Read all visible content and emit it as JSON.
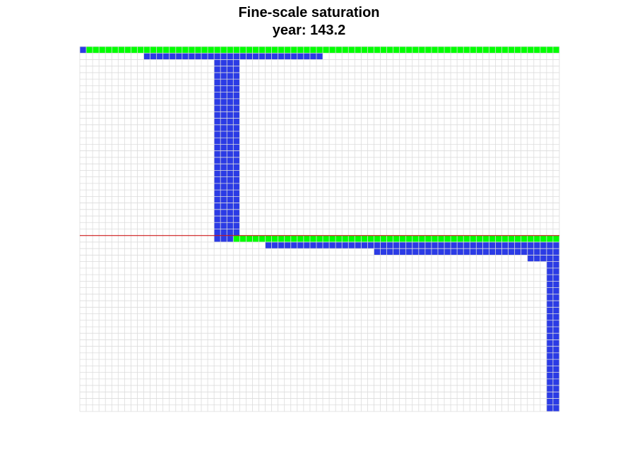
{
  "chart_data": {
    "type": "heatmap",
    "title": "Fine-scale saturation",
    "subtitle": "year: 143.2",
    "xlabel": "",
    "ylabel": "",
    "grid": true,
    "grid_size": {
      "cols": 75,
      "rows": 56
    },
    "cell_states": {
      "0": {
        "meaning": "empty",
        "color": "#ffffff"
      },
      "1": {
        "meaning": "saturated",
        "color": "#2b3be5"
      },
      "2": {
        "meaning": "top layer",
        "color": "#00ff00"
      }
    },
    "regions": [
      {
        "state": 1,
        "cols": [
          0,
          0
        ],
        "rows": [
          0,
          0
        ]
      },
      {
        "state": 2,
        "cols": [
          1,
          74
        ],
        "rows": [
          0,
          0
        ]
      },
      {
        "state": 1,
        "cols": [
          10,
          37
        ],
        "rows": [
          1,
          1
        ]
      },
      {
        "state": 1,
        "cols": [
          21,
          24
        ],
        "rows": [
          1,
          29
        ]
      },
      {
        "state": 2,
        "cols": [
          24,
          74
        ],
        "rows": [
          29,
          29
        ]
      },
      {
        "state": 1,
        "cols": [
          29,
          74
        ],
        "rows": [
          30,
          30
        ]
      },
      {
        "state": 1,
        "cols": [
          46,
          74
        ],
        "rows": [
          31,
          31
        ]
      },
      {
        "state": 1,
        "cols": [
          70,
          74
        ],
        "rows": [
          32,
          32
        ]
      },
      {
        "state": 1,
        "cols": [
          73,
          74
        ],
        "rows": [
          33,
          55
        ]
      }
    ],
    "interface_line": {
      "row": 29,
      "color": "#cc0000"
    }
  }
}
